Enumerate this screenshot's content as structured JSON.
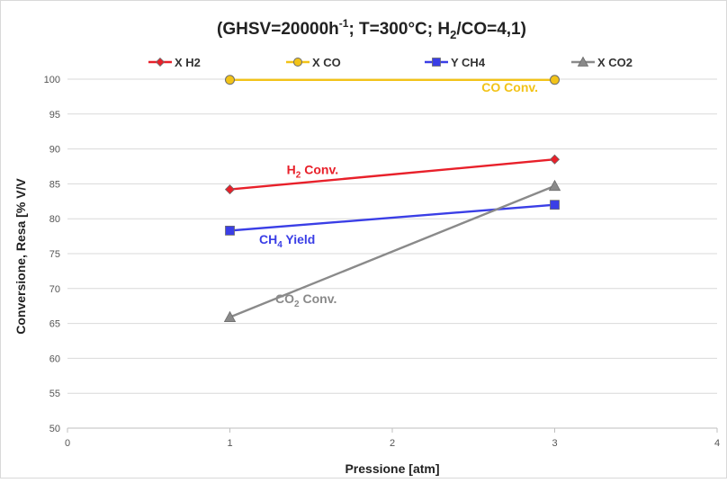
{
  "chart_data": {
    "type": "line",
    "title": {
      "prefix": "(GHSV=20000h",
      "sup": "-1",
      "mid1": "; T=300°C; H",
      "sub": "2",
      "suffix": "/CO=4,1)"
    },
    "xlabel": "Pressione [atm]",
    "ylabel": "Conversione, Resa [% V/V",
    "xlim": [
      0,
      4
    ],
    "ylim": [
      50,
      100
    ],
    "xticks": [
      0,
      1,
      2,
      3,
      4
    ],
    "yticks": [
      50,
      55,
      60,
      65,
      70,
      75,
      80,
      85,
      90,
      95,
      100
    ],
    "grid": "horizontal",
    "legend_position": "top",
    "series": [
      {
        "name": "X H2",
        "color": "#e8202a",
        "marker": "diamond",
        "x": [
          1,
          3
        ],
        "y": [
          84.2,
          88.5
        ]
      },
      {
        "name": "X CO",
        "color": "#f2c318",
        "marker": "circle",
        "x": [
          1,
          3
        ],
        "y": [
          99.9,
          99.9
        ]
      },
      {
        "name": "Y CH4",
        "color": "#3a3ee6",
        "marker": "square",
        "x": [
          1,
          3
        ],
        "y": [
          78.3,
          82.0
        ]
      },
      {
        "name": "X CO2",
        "color": "#8a8a8a",
        "marker": "triangle",
        "x": [
          1,
          3
        ],
        "y": [
          65.9,
          84.7
        ]
      }
    ],
    "annotations": [
      {
        "base": "CO Conv.",
        "sub": "",
        "rest": "",
        "color": "#f2c318",
        "x": 2.55,
        "y": 98.2
      },
      {
        "base": "H",
        "sub": "2",
        "rest": " Conv.",
        "color": "#e8202a",
        "x": 1.35,
        "y": 86.4
      },
      {
        "base": "CH",
        "sub": "4",
        "rest": " Yield",
        "color": "#3a3ee6",
        "x": 1.18,
        "y": 76.4
      },
      {
        "base": "CO",
        "sub": "2",
        "rest": " Conv.",
        "color": "#8a8a8a",
        "x": 1.28,
        "y": 67.9
      }
    ]
  }
}
